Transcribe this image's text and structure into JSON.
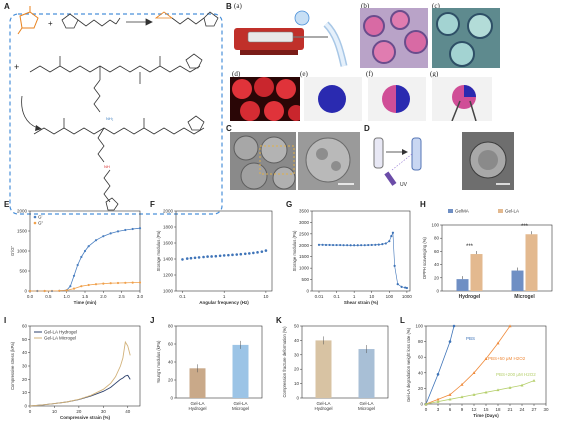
{
  "panels": {
    "a": "A",
    "b": "B",
    "c": "C",
    "d": "D",
    "e": "E",
    "f": "F",
    "g": "G",
    "h": "H",
    "i": "I",
    "j": "J",
    "k": "K",
    "l": "L"
  },
  "subpanels": [
    "(a)",
    "(b)",
    "(c)",
    "(d)",
    "(e)",
    "(f)",
    "(g)"
  ],
  "scheme": {
    "plus1": "+",
    "plus2": "+",
    "uv": "UV"
  },
  "colors": {
    "reagent": "#e8821e",
    "linker": "#3f7fc0",
    "amine": "#d93030",
    "dashed_box": "#4a90d9",
    "pink": "#d04e97",
    "blue_dye": "#2a2ab0",
    "sem_gray": "#8a8a8a"
  },
  "chart_data": [
    {
      "id": "E",
      "type": "line",
      "xlabel": "Time (min)",
      "ylabel": "G'/G''",
      "xlim": [
        0,
        3.0
      ],
      "ylim": [
        0,
        2000
      ],
      "xticks": [
        "0.0",
        "0.5",
        "1.0",
        "1.5",
        "2.0",
        "2.5",
        "3.0"
      ],
      "yticks": [
        "0",
        "500",
        "1000",
        "1500",
        "2000"
      ],
      "legend_position": "top-left",
      "series": [
        {
          "name": "G'",
          "color": "#4a7fc1",
          "x": [
            0,
            0.2,
            0.4,
            0.6,
            0.8,
            1.0,
            1.1,
            1.2,
            1.3,
            1.4,
            1.5,
            1.6,
            1.8,
            2.0,
            2.2,
            2.4,
            2.6,
            2.8,
            3.0
          ],
          "y": [
            0,
            0,
            0,
            0,
            5,
            20,
            120,
            380,
            650,
            850,
            1000,
            1120,
            1270,
            1370,
            1440,
            1490,
            1525,
            1550,
            1570
          ]
        },
        {
          "name": "G''",
          "color": "#f0a04b",
          "x": [
            0,
            0.4,
            0.8,
            1.0,
            1.2,
            1.4,
            1.6,
            1.8,
            2.0,
            2.2,
            2.4,
            2.6,
            2.8,
            3.0
          ],
          "y": [
            0,
            0,
            5,
            15,
            60,
            120,
            150,
            170,
            185,
            195,
            200,
            205,
            210,
            212
          ]
        }
      ]
    },
    {
      "id": "F",
      "type": "scatter",
      "xlabel": "Angular frequency (Hz)",
      "ylabel": "Storage modulus (Pa)",
      "xscale": "log",
      "xlim": [
        0.07,
        14
      ],
      "ylim": [
        1000,
        2000
      ],
      "xticks": [
        "0.1",
        "1",
        "10"
      ],
      "yticks": [
        "1000",
        "1200",
        "1400",
        "1600",
        "1800",
        "2000"
      ],
      "series": [
        {
          "name": "",
          "color": "#3f74b8",
          "x": [
            0.1,
            0.13,
            0.16,
            0.2,
            0.25,
            0.32,
            0.4,
            0.5,
            0.63,
            0.8,
            1.0,
            1.26,
            1.58,
            2.0,
            2.5,
            3.2,
            4.0,
            5.0,
            6.3,
            8.0,
            10
          ],
          "y": [
            1395,
            1405,
            1410,
            1415,
            1420,
            1425,
            1430,
            1432,
            1435,
            1440,
            1445,
            1448,
            1452,
            1456,
            1460,
            1465,
            1470,
            1476,
            1483,
            1492,
            1505
          ]
        }
      ]
    },
    {
      "id": "G",
      "type": "scatter",
      "xlabel": "Shear strain (%)",
      "ylabel": "Storage modulus (Pa)",
      "xscale": "log",
      "xlim": [
        0.004,
        1500
      ],
      "ylim": [
        0,
        3500
      ],
      "xticks": [
        "0.01",
        "0.1",
        "1",
        "10",
        "100",
        "1000"
      ],
      "yticks": [
        "0",
        "500",
        "1000",
        "1500",
        "2000",
        "2500",
        "3000",
        "3500"
      ],
      "series": [
        {
          "name": "",
          "color": "#3f74b8",
          "x": [
            0.01,
            0.016,
            0.025,
            0.04,
            0.063,
            0.1,
            0.16,
            0.25,
            0.4,
            0.63,
            1,
            1.6,
            2.5,
            4,
            6.3,
            10,
            16,
            25,
            40,
            63,
            100,
            130,
            160,
            200,
            300,
            500,
            800,
            1000
          ],
          "y": [
            2020,
            2020,
            2015,
            2015,
            2010,
            2010,
            2010,
            2005,
            2005,
            2000,
            2000,
            2000,
            2005,
            2005,
            2010,
            2015,
            2020,
            2030,
            2050,
            2080,
            2180,
            2400,
            2550,
            1100,
            300,
            180,
            150,
            130
          ]
        }
      ]
    },
    {
      "id": "H",
      "type": "bar",
      "xlabel": "",
      "ylabel": "DPPH scavenging (%)",
      "ylim": [
        0,
        100
      ],
      "yticks": [
        "0",
        "20",
        "40",
        "60",
        "80",
        "100"
      ],
      "categories": [
        "Hydrogel",
        "Microgel"
      ],
      "series": [
        {
          "name": "GelMA",
          "color": "#6f8fc4",
          "values": [
            18,
            31
          ]
        },
        {
          "name": "Gel-LA",
          "color": "#e3b98f",
          "values": [
            56,
            86
          ]
        }
      ],
      "annotations": [
        "***",
        "***"
      ]
    },
    {
      "id": "I",
      "type": "line",
      "xlabel": "Compressive strain (%)",
      "ylabel": "Compressive stress (kPa)",
      "xlim": [
        0,
        45
      ],
      "ylim": [
        0,
        60
      ],
      "xticks": [
        "0",
        "10",
        "20",
        "30",
        "40"
      ],
      "yticks": [
        "0",
        "10",
        "20",
        "30",
        "40",
        "50",
        "60"
      ],
      "legend_position": "top-left",
      "series": [
        {
          "name": "Gel-LA Hydrogel",
          "color": "#2b3f6b",
          "x": [
            0,
            5,
            10,
            15,
            20,
            25,
            30,
            33,
            35,
            37,
            38,
            39,
            40,
            41
          ],
          "y": [
            0,
            0.8,
            1.8,
            3,
            4.8,
            7.5,
            11,
            14,
            17,
            20,
            21,
            22.5,
            23,
            20
          ]
        },
        {
          "name": "Gel-LA Microgel",
          "color": "#d2b27a",
          "x": [
            0,
            5,
            10,
            15,
            20,
            25,
            30,
            33,
            35,
            37,
            38,
            39,
            40,
            41
          ],
          "y": [
            0,
            0.8,
            1.8,
            3,
            5,
            8,
            12.5,
            17,
            22,
            30,
            36,
            48,
            45,
            38
          ]
        }
      ]
    },
    {
      "id": "J",
      "type": "bar",
      "xlabel": "",
      "ylabel": "Young's modulus (kPa)",
      "ylim": [
        0,
        80
      ],
      "yticks": [
        "0",
        "20",
        "40",
        "60",
        "80"
      ],
      "categories": [
        "Gel-LA Hydrogel",
        "Gel-LA Microgel"
      ],
      "series": [
        {
          "name": "",
          "values": [
            33,
            59
          ],
          "colors": [
            "#c9a989",
            "#9cc4e6"
          ]
        }
      ]
    },
    {
      "id": "K",
      "type": "bar",
      "xlabel": "",
      "ylabel": "Compression fracture deformation (%)",
      "ylim": [
        0,
        50
      ],
      "yticks": [
        "0",
        "10",
        "20",
        "30",
        "40",
        "50"
      ],
      "categories": [
        "Gel-LA Hydrogel",
        "Gel-LA Microgel"
      ],
      "series": [
        {
          "name": "",
          "values": [
            40,
            34
          ],
          "colors": [
            "#d8c3a3",
            "#a8bfd6"
          ]
        }
      ]
    },
    {
      "id": "L",
      "type": "line",
      "xlabel": "Time (Days)",
      "ylabel": "Gel-LA degradation weight loss rate (%)",
      "xlim": [
        0,
        30
      ],
      "ylim": [
        0,
        100
      ],
      "xticks": [
        "0",
        "3",
        "6",
        "9",
        "12",
        "15",
        "18",
        "21",
        "24",
        "27",
        "30"
      ],
      "yticks": [
        "0",
        "20",
        "40",
        "60",
        "80",
        "100"
      ],
      "series": [
        {
          "name": "PBS",
          "color": "#3f74b8",
          "x": [
            0,
            3,
            6,
            7
          ],
          "y": [
            0,
            38,
            80,
            100
          ]
        },
        {
          "name": "PBS+50 μM H2O2",
          "color": "#ef8a3a",
          "x": [
            0,
            3,
            6,
            9,
            12,
            15,
            18,
            21
          ],
          "y": [
            0,
            6,
            12,
            25,
            40,
            58,
            78,
            100
          ]
        },
        {
          "name": "PBS+200 μM H2O2",
          "color": "#b5cf6b",
          "x": [
            0,
            3,
            6,
            9,
            12,
            15,
            18,
            21,
            24,
            27
          ],
          "y": [
            0,
            3,
            6,
            9,
            12,
            15,
            18,
            21,
            24,
            30
          ]
        }
      ]
    }
  ]
}
